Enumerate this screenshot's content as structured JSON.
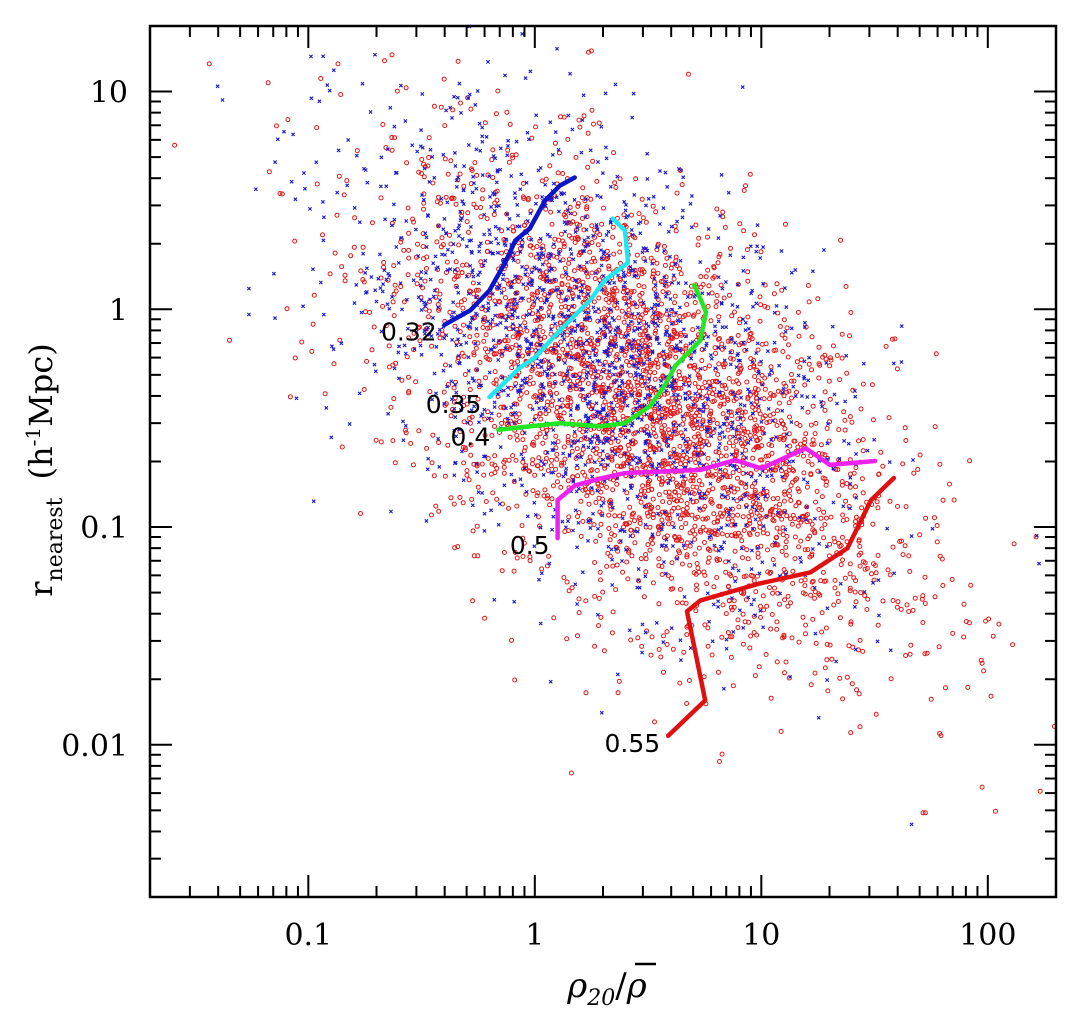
{
  "chart_data": {
    "type": "scatter",
    "title": "",
    "xlabel": "ρ20/ρ̄",
    "xlabel_parts": {
      "main": "ρ",
      "sub": "20",
      "slash": "/",
      "denominator": "ρ"
    },
    "ylabel": "r_nearest (h^-1 Mpc)",
    "ylabel_parts": {
      "main": "r",
      "sub": "nearest",
      "unit_open": "(h",
      "unit_sup": "-1",
      "unit_close": "Mpc)"
    },
    "xscale": "log",
    "yscale": "log",
    "xlim": [
      0.02,
      200
    ],
    "ylim": [
      0.002,
      20
    ],
    "grid": false,
    "legend": "none",
    "x_ticks": [
      {
        "value": 0.1,
        "label": "0.1"
      },
      {
        "value": 1,
        "label": "1"
      },
      {
        "value": 10,
        "label": "10"
      },
      {
        "value": 100,
        "label": "100"
      }
    ],
    "y_ticks": [
      {
        "value": 0.01,
        "label": "0.01"
      },
      {
        "value": 0.1,
        "label": "0.1"
      },
      {
        "value": 1,
        "label": "1"
      },
      {
        "value": 10,
        "label": "10"
      }
    ],
    "scatter_series": [
      {
        "name": "red-circles",
        "marker": "open-circle",
        "color": "#e01818",
        "distribution": {
          "center_x": 3.0,
          "center_y": 0.35,
          "log_sigma_x": 0.55,
          "log_sigma_y": 0.55,
          "correlation": -0.55,
          "count": 3200
        }
      },
      {
        "name": "blue-crosses",
        "marker": "x",
        "color": "#1a1ad0",
        "distribution": {
          "center_x": 1.8,
          "center_y": 0.6,
          "log_sigma_x": 0.55,
          "log_sigma_y": 0.55,
          "correlation": -0.5,
          "count": 1700
        }
      }
    ],
    "series": [
      {
        "name": "0.32",
        "color": "#0a14c8",
        "x": [
          0.4,
          0.52,
          0.63,
          0.74,
          0.82,
          0.95,
          1.11,
          1.29,
          1.5
        ],
        "y": [
          0.85,
          0.99,
          1.22,
          1.64,
          2.07,
          2.35,
          3.16,
          3.7,
          4.03
        ],
        "label": "0.32",
        "label_at": [
          0.4,
          0.85
        ]
      },
      {
        "name": "0.35",
        "color": "#22e6ee",
        "x": [
          0.63,
          0.86,
          1.0,
          1.29,
          1.75,
          2.04,
          2.58,
          2.5,
          2.21
        ],
        "y": [
          0.395,
          0.54,
          0.6,
          0.8,
          1.1,
          1.36,
          1.64,
          2.3,
          2.61
        ],
        "label": "0.35",
        "label_at": [
          0.63,
          0.395
        ]
      },
      {
        "name": "0.4",
        "color": "#22e622",
        "x": [
          0.69,
          0.95,
          1.29,
          1.94,
          2.5,
          3.23,
          3.76,
          4.17,
          5.38,
          5.7,
          5.38,
          5.05
        ],
        "y": [
          0.28,
          0.29,
          0.3,
          0.29,
          0.3,
          0.36,
          0.45,
          0.55,
          0.72,
          0.97,
          1.12,
          1.29
        ],
        "label": "0.4",
        "label_at": [
          0.69,
          0.28
        ]
      },
      {
        "name": "0.5",
        "color": "#ee22ee",
        "x": [
          1.26,
          1.26,
          1.5,
          1.94,
          2.5,
          5.38,
          7.67,
          10.0,
          15.7,
          20.1,
          31.8
        ],
        "y": [
          0.089,
          0.133,
          0.155,
          0.167,
          0.177,
          0.183,
          0.203,
          0.186,
          0.23,
          0.193,
          0.201
        ],
        "label": "0.5",
        "label_at": [
          1.26,
          0.089
        ]
      },
      {
        "name": "0.55",
        "color": "#e01010",
        "x": [
          3.88,
          5.65,
          4.7,
          5.38,
          9.8,
          16.5,
          24.0,
          30.5,
          38.5
        ],
        "y": [
          0.011,
          0.016,
          0.041,
          0.046,
          0.055,
          0.062,
          0.08,
          0.133,
          0.168
        ],
        "label": "0.55",
        "label_at": [
          3.88,
          0.011
        ]
      }
    ]
  }
}
